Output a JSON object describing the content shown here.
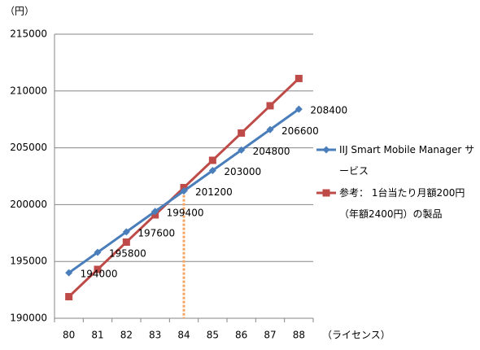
{
  "chart_data": {
    "type": "line",
    "y_label": "（円）",
    "x_label": "（ライセンス）",
    "categories": [
      "80",
      "81",
      "82",
      "83",
      "84",
      "85",
      "86",
      "87",
      "88"
    ],
    "ylim": [
      190000,
      215000
    ],
    "yticks": [
      190000,
      195000,
      200000,
      205000,
      210000,
      215000
    ],
    "grid": true,
    "legend": "right",
    "vline": {
      "category": "84",
      "color": "#f4a460"
    },
    "series": [
      {
        "name": "IIJ Smart Mobile Manager サービス",
        "color": "#4a7ebb",
        "marker": "diamond",
        "values": [
          194000,
          195800,
          197600,
          199400,
          201200,
          203000,
          204800,
          206600,
          208400
        ],
        "value_labels": [
          "194000",
          "195800",
          "197600",
          "199400",
          "201200",
          "203000",
          "204800",
          "206600",
          "208400"
        ]
      },
      {
        "name": "参考： 1台当たり月額200円（年額2400円）の製品",
        "color": "#be4b48",
        "marker": "square",
        "values": [
          191900,
          194300,
          196700,
          199100,
          201500,
          203900,
          206300,
          208700,
          211100
        ]
      }
    ]
  }
}
